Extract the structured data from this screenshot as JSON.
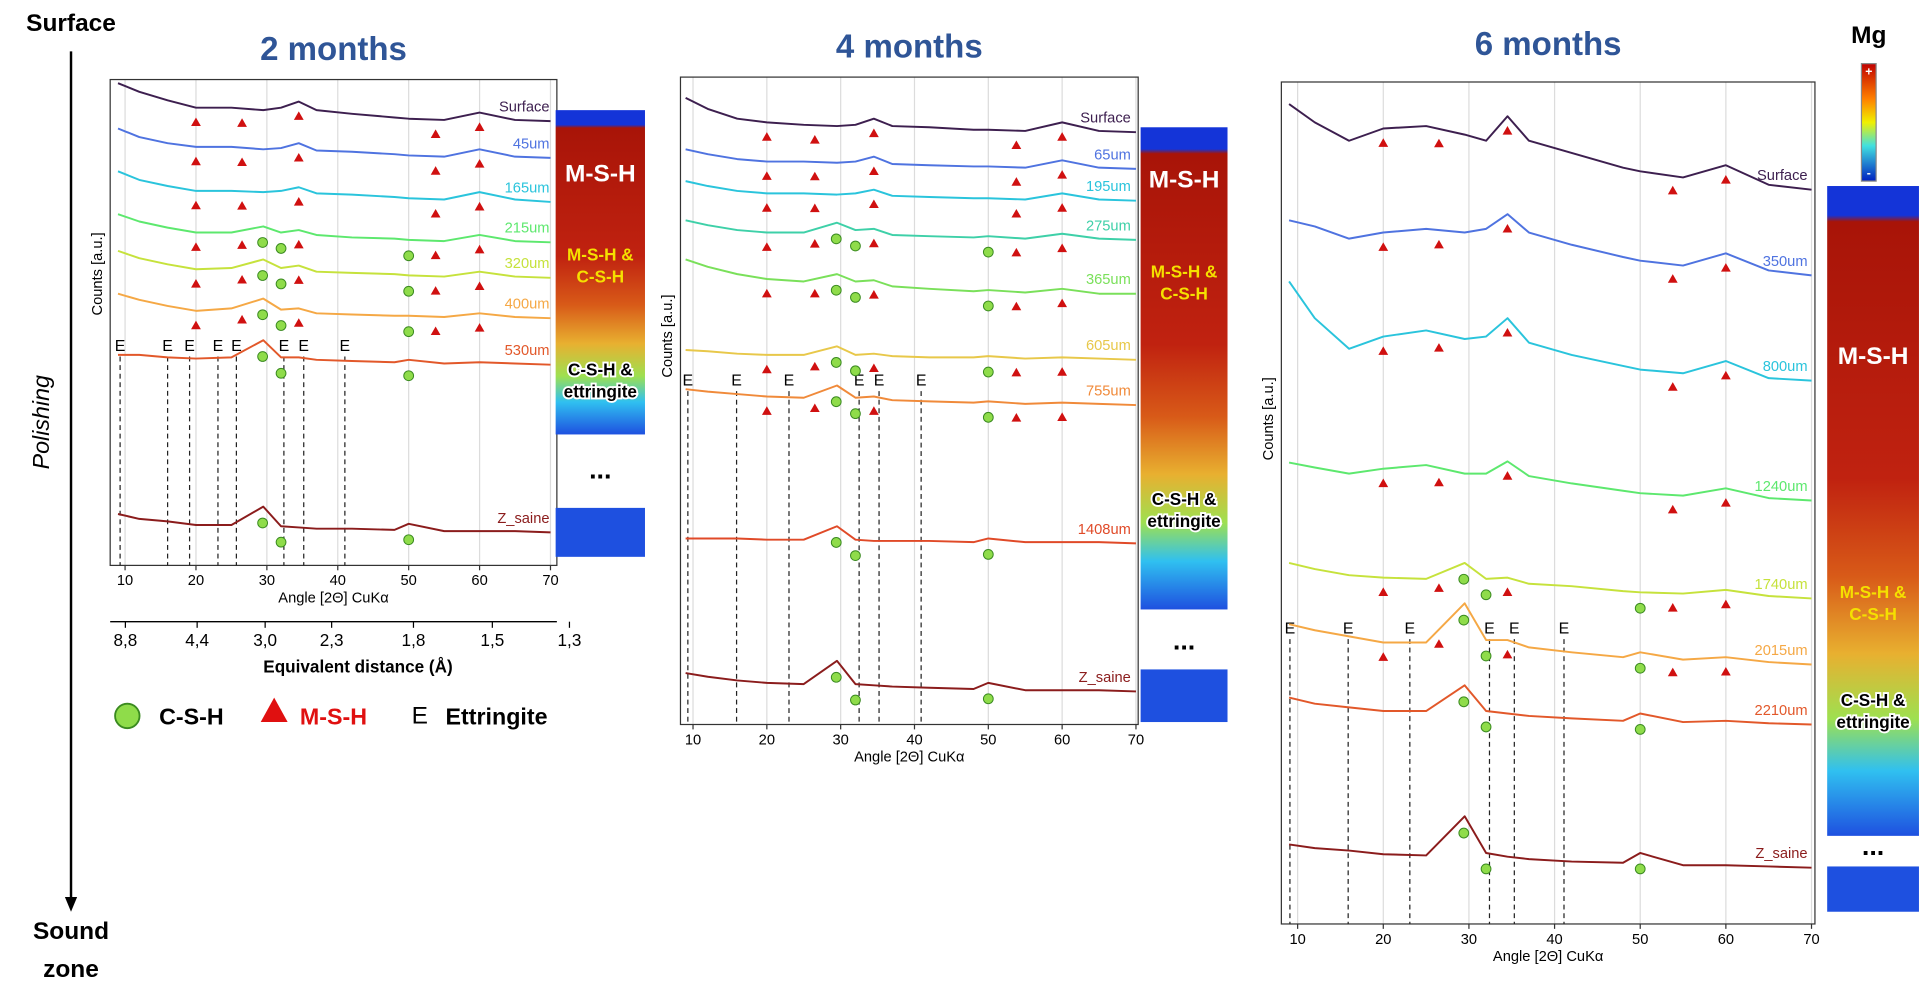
{
  "side": {
    "top": "Surface",
    "middle": "Polishing",
    "bottom": [
      "Sound",
      "zone"
    ]
  },
  "legend": [
    {
      "symbol": "",
      "label": "C-S-H"
    },
    {
      "symbol": "",
      "label": "M-S-H"
    },
    {
      "symbol": "E",
      "label": "Ettringite"
    }
  ],
  "colorbar": {
    "title": "Mg",
    "max": "+",
    "min": "-"
  },
  "chart_data": [
    {
      "type": "line",
      "title": "2 months",
      "xlabel": "Angle [2Θ] CuKα",
      "ylabel": "Counts [a.u.]",
      "x": [
        9,
        12,
        16,
        20,
        25,
        29.5,
        32,
        34.5,
        37,
        42,
        48,
        50,
        55,
        60,
        65,
        70
      ],
      "xlim": [
        7.9,
        70.9
      ],
      "xticks": [
        10,
        20,
        30,
        40,
        50,
        60,
        70
      ],
      "ylim": [
        0,
        397
      ],
      "grid": true,
      "x2label": "Equivalent distance (Å)",
      "x2ticks": [
        {
          "value": 8.8,
          "label": "8,8"
        },
        {
          "value": 4.4,
          "label": "4,4"
        },
        {
          "value": 3.0,
          "label": "3,0"
        },
        {
          "value": 2.3,
          "label": "2,3"
        },
        {
          "value": 1.8,
          "label": "1,8"
        },
        {
          "value": 1.5,
          "label": "1,5"
        },
        {
          "value": 1.3,
          "label": "1,3"
        }
      ],
      "series": [
        {
          "name": "Surface",
          "color": "#3d1f4f",
          "msh": true,
          "csh": false,
          "values": [
            394,
            387,
            380,
            374,
            374,
            372,
            374,
            379,
            372,
            369,
            366,
            365,
            364,
            370,
            364,
            363
          ]
        },
        {
          "name": "45um",
          "color": "#4f73e0",
          "msh": true,
          "csh": false,
          "values": [
            357,
            350,
            345,
            342,
            342,
            340,
            341,
            345,
            339,
            338,
            336,
            335,
            334,
            340,
            334,
            333
          ]
        },
        {
          "name": "165um",
          "color": "#2ac4dc",
          "msh": true,
          "csh": false,
          "values": [
            322,
            315,
            310,
            306,
            306,
            305,
            306,
            309,
            304,
            303,
            301,
            300,
            299,
            305,
            299,
            297
          ]
        },
        {
          "name": "215um",
          "color": "#5de86e",
          "msh": true,
          "csh": true,
          "values": [
            287,
            281,
            276,
            272,
            272,
            277,
            272,
            274,
            270,
            268,
            267,
            266,
            265,
            270,
            265,
            264
          ]
        },
        {
          "name": "320um",
          "color": "#c6e23c",
          "msh": true,
          "csh": true,
          "values": [
            257,
            251,
            246,
            242,
            243,
            250,
            243,
            245,
            240,
            239,
            238,
            237,
            236,
            240,
            236,
            235
          ]
        },
        {
          "name": "400um",
          "color": "#f5a845",
          "msh": true,
          "csh": true,
          "values": [
            222,
            217,
            212,
            208,
            210,
            218,
            209,
            210,
            206,
            205,
            204,
            204,
            203,
            206,
            203,
            202
          ]
        },
        {
          "name": "530um",
          "color": "#e2582a",
          "msh": false,
          "csh": true,
          "values": [
            172,
            172,
            170,
            169,
            170,
            184,
            170,
            170,
            168,
            167,
            166,
            168,
            165,
            166,
            165,
            164
          ]
        },
        {
          "name": "Z_saine",
          "color": "#8b1c1c",
          "msh": false,
          "csh": true,
          "values": [
            42,
            38,
            36,
            33,
            33,
            48,
            32,
            31,
            30,
            30,
            29,
            34,
            28,
            28,
            28,
            27
          ]
        }
      ],
      "msh_peaks": [
        20,
        26.5,
        34.5,
        53.8,
        60
      ],
      "csh_peaks": [
        29.4,
        32,
        50
      ],
      "ettringite_peaks": [
        9.3,
        16.0,
        19.1,
        23.1,
        25.7,
        32.4,
        35.2,
        41.0
      ],
      "ettringite_symbol": "E",
      "map_labels": [
        [
          "M-S-H"
        ],
        [
          "M-S-H &",
          "C-S-H"
        ],
        [
          "C-S-H &",
          "ettringite"
        ]
      ],
      "ellipsis": "..."
    },
    {
      "type": "line",
      "title": "4 months",
      "xlabel": "Angle [2Θ] CuKα",
      "ylabel": "Counts [a.u.]",
      "x": [
        9,
        12,
        16,
        20,
        25,
        29.5,
        32,
        34.5,
        37,
        42,
        48,
        50,
        55,
        60,
        65,
        70
      ],
      "xlim": [
        8.3,
        70.3
      ],
      "xticks": [
        10,
        20,
        30,
        40,
        50,
        60,
        70
      ],
      "ylim": [
        0,
        529
      ],
      "grid": true,
      "series": [
        {
          "name": "Surface",
          "color": "#3d1f4f",
          "msh": true,
          "csh": false,
          "values": [
            512,
            503,
            495,
            492,
            490,
            489,
            490,
            495,
            489,
            488,
            486,
            486,
            485,
            492,
            485,
            484
          ]
        },
        {
          "name": "65um",
          "color": "#4f73e0",
          "msh": true,
          "csh": false,
          "values": [
            470,
            466,
            462,
            460,
            460,
            459,
            460,
            464,
            458,
            457,
            456,
            456,
            455,
            461,
            455,
            454
          ]
        },
        {
          "name": "195um",
          "color": "#2ac4dc",
          "msh": true,
          "csh": false,
          "values": [
            444,
            440,
            436,
            434,
            434,
            433,
            434,
            437,
            432,
            431,
            430,
            430,
            429,
            434,
            429,
            428
          ]
        },
        {
          "name": "275um",
          "color": "#3ed0a8",
          "msh": true,
          "csh": true,
          "values": [
            412,
            408,
            404,
            402,
            402,
            410,
            404,
            405,
            400,
            399,
            398,
            399,
            397,
            401,
            397,
            396
          ]
        },
        {
          "name": "365um",
          "color": "#7ae05a",
          "msh": true,
          "csh": true,
          "values": [
            380,
            374,
            368,
            364,
            362,
            368,
            362,
            363,
            358,
            356,
            354,
            355,
            353,
            356,
            352,
            352
          ]
        },
        {
          "name": "605um",
          "color": "#e8c84a",
          "msh": true,
          "csh": true,
          "values": [
            306,
            305,
            303,
            302,
            302,
            309,
            302,
            303,
            301,
            300,
            300,
            301,
            299,
            300,
            299,
            298
          ]
        },
        {
          "name": "755um",
          "color": "#f08a3a",
          "msh": true,
          "csh": true,
          "values": [
            274,
            272,
            270,
            268,
            267,
            277,
            267,
            268,
            265,
            264,
            263,
            264,
            262,
            263,
            262,
            261
          ]
        },
        {
          "name": "1408um",
          "color": "#e04a28",
          "msh": false,
          "csh": true,
          "values": [
            152,
            152,
            152,
            151,
            151,
            162,
            151,
            150,
            150,
            150,
            149,
            152,
            149,
            149,
            149,
            148
          ]
        },
        {
          "name": "Z_saine",
          "color": "#8b1c1c",
          "msh": false,
          "csh": true,
          "values": [
            42,
            39,
            36,
            34,
            33,
            52,
            33,
            32,
            31,
            30,
            29,
            34,
            28,
            28,
            28,
            27
          ]
        }
      ],
      "msh_peaks": [
        20,
        26.5,
        34.5,
        53.8,
        60
      ],
      "csh_peaks": [
        29.4,
        32,
        50
      ],
      "ettringite_peaks": [
        9.3,
        15.9,
        23.0,
        32.5,
        35.2,
        40.9
      ],
      "ettringite_symbol": "E",
      "map_labels": [
        [
          "M-S-H"
        ],
        [
          "M-S-H &",
          "C-S-H"
        ],
        [
          "C-S-H &",
          "ettringite"
        ]
      ],
      "ellipsis": "..."
    },
    {
      "type": "line",
      "title": "6 months",
      "xlabel": "Angle [2Θ] CuKα",
      "ylabel": "Counts [a.u.]",
      "x": [
        9,
        12,
        16,
        20,
        25,
        29.5,
        32,
        34.5,
        37,
        42,
        48,
        50,
        55,
        60,
        65,
        70
      ],
      "xlim": [
        8.1,
        70.4
      ],
      "xticks": [
        10,
        20,
        30,
        40,
        50,
        60,
        70
      ],
      "ylim": [
        0,
        688
      ],
      "grid": true,
      "series": [
        {
          "name": "Surface",
          "color": "#3d1f4f",
          "msh": true,
          "csh": false,
          "values": [
            670,
            655,
            640,
            650,
            652,
            645,
            640,
            660,
            640,
            630,
            618,
            615,
            610,
            620,
            604,
            600
          ]
        },
        {
          "name": "350um",
          "color": "#4f73e0",
          "msh": true,
          "csh": false,
          "values": [
            575,
            570,
            560,
            565,
            568,
            565,
            568,
            580,
            565,
            555,
            545,
            542,
            538,
            548,
            534,
            530
          ]
        },
        {
          "name": "800um",
          "color": "#2ac4dc",
          "msh": true,
          "csh": false,
          "values": [
            525,
            495,
            470,
            480,
            485,
            478,
            480,
            495,
            475,
            465,
            456,
            453,
            450,
            460,
            446,
            444
          ]
        },
        {
          "name": "1240um",
          "color": "#5de86e",
          "msh": true,
          "csh": false,
          "values": [
            377,
            373,
            368,
            372,
            375,
            368,
            368,
            378,
            366,
            360,
            354,
            352,
            350,
            356,
            348,
            346
          ]
        },
        {
          "name": "1740um",
          "color": "#c6e23c",
          "msh": true,
          "csh": true,
          "values": [
            295,
            290,
            285,
            283,
            282,
            295,
            282,
            283,
            278,
            276,
            272,
            271,
            270,
            273,
            268,
            266
          ]
        },
        {
          "name": "2015um",
          "color": "#f5a845",
          "msh": true,
          "csh": true,
          "values": [
            245,
            240,
            235,
            230,
            230,
            262,
            232,
            232,
            226,
            222,
            218,
            222,
            216,
            218,
            214,
            212
          ]
        },
        {
          "name": "2210um",
          "color": "#e2582a",
          "msh": false,
          "csh": true,
          "values": [
            185,
            180,
            177,
            174,
            174,
            195,
            174,
            172,
            170,
            168,
            166,
            172,
            165,
            166,
            164,
            163
          ]
        },
        {
          "name": "Z_saine",
          "color": "#8b1c1c",
          "msh": false,
          "csh": true,
          "values": [
            65,
            62,
            60,
            57,
            56,
            88,
            58,
            55,
            53,
            51,
            50,
            58,
            48,
            48,
            47,
            46
          ]
        }
      ],
      "msh_peaks": [
        20,
        26.5,
        34.5,
        53.8,
        60
      ],
      "csh_peaks": [
        29.4,
        32,
        50
      ],
      "ettringite_peaks": [
        9.1,
        15.9,
        23.1,
        32.4,
        35.3,
        41.1
      ],
      "ettringite_symbol": "E",
      "map_labels": [
        [
          "M-S-H"
        ],
        [
          "M-S-H &",
          "C-S-H"
        ],
        [
          "C-S-H &",
          "ettringite"
        ]
      ],
      "ellipsis": "..."
    }
  ]
}
